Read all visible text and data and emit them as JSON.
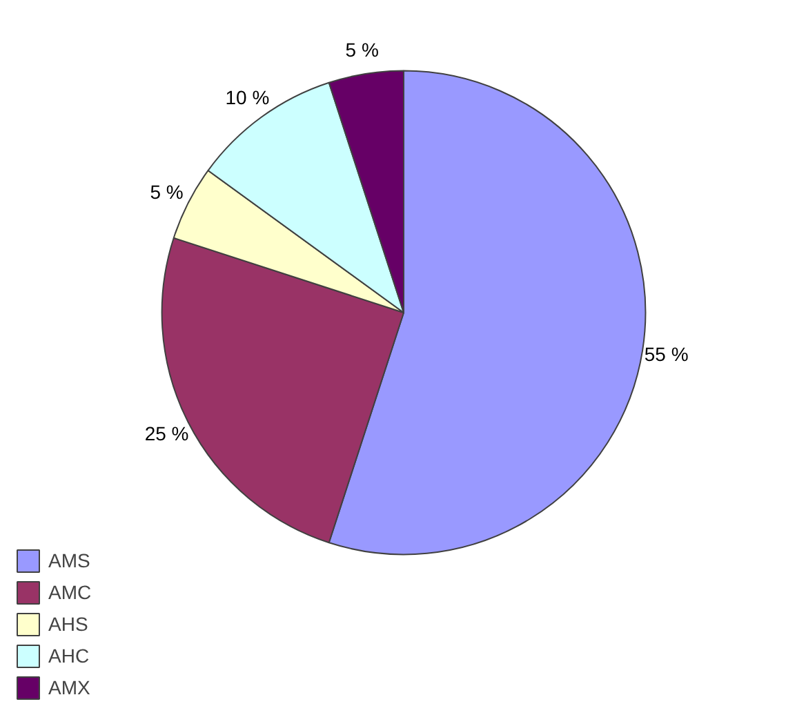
{
  "chart_data": {
    "type": "pie",
    "categories": [
      "AMS",
      "AMC",
      "AHS",
      "AHC",
      "AMX"
    ],
    "values": [
      55,
      25,
      5,
      10,
      5
    ],
    "colors": [
      "#9999ff",
      "#993366",
      "#ffffcc",
      "#ccffff",
      "#660066"
    ],
    "value_labels": [
      "55 %",
      "25 %",
      "5 %",
      "10 %",
      "5 %"
    ],
    "legend": "bottom left"
  }
}
